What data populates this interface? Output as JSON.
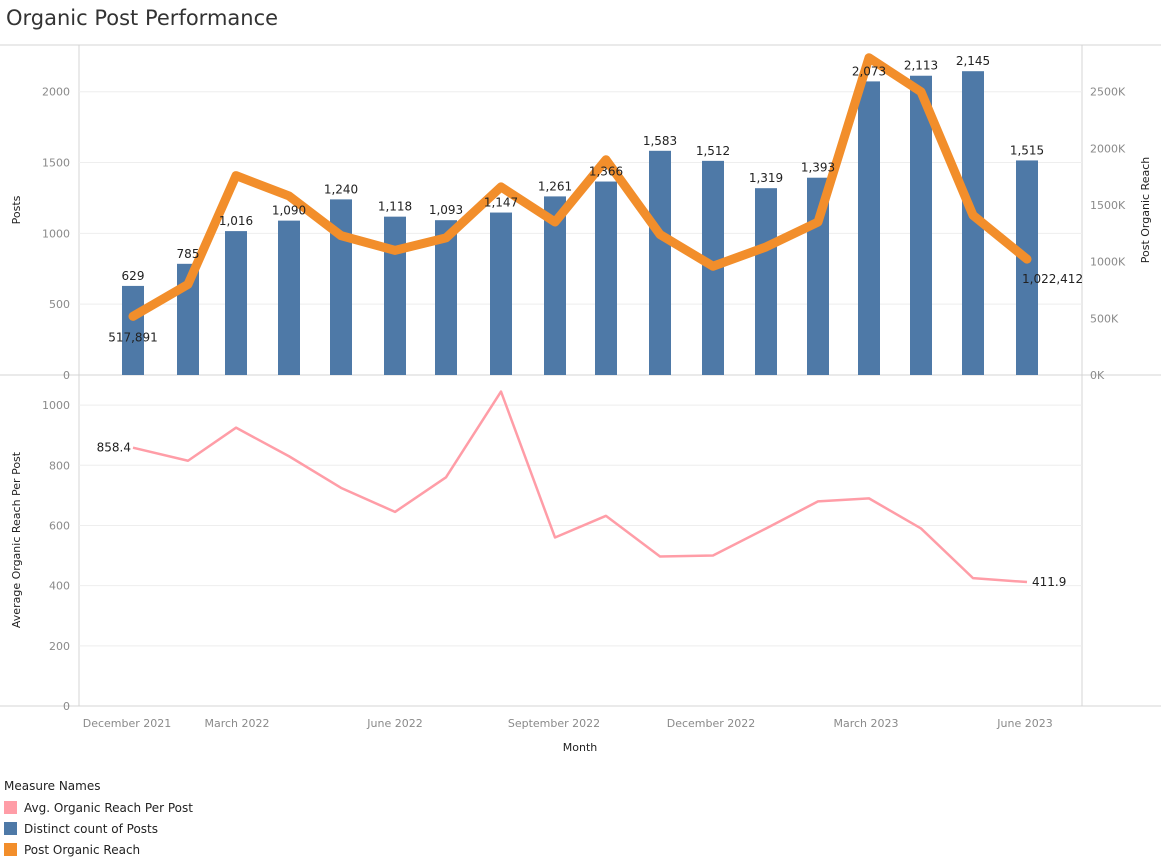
{
  "title": "Organic Post Performance",
  "colors": {
    "posts": "#4e79a7",
    "reach": "#f28e2b",
    "avg": "#ff9da7",
    "grid": "#eeeeee",
    "axis": "#d4d4d4"
  },
  "chart_data": {
    "type": "bar",
    "xlabel": "Month",
    "x_ticks": [
      "December 2021",
      "March 2022",
      "June 2022",
      "September 2022",
      "December 2022",
      "March 2023",
      "June 2023"
    ],
    "panels": [
      {
        "name": "top",
        "ylabel_left": "Posts",
        "ylabel_right": "Post Organic Reach",
        "yticks_left": [
          "0",
          "500",
          "1000",
          "1500",
          "2000"
        ],
        "yticks_right": [
          "0K",
          "500K",
          "1000K",
          "1500K",
          "2000K",
          "2500K"
        ],
        "ylim_left": [
          0,
          2330
        ],
        "ylim_right": [
          0,
          2912500
        ],
        "series": [
          {
            "name": "Distinct count of Posts",
            "type": "bar",
            "values": [
              629,
              785,
              1016,
              1090,
              1240,
              1118,
              1093,
              1147,
              1261,
              1366,
              1583,
              1512,
              1319,
              1393,
              2073,
              2113,
              2145,
              1515
            ],
            "labels": [
              "629",
              "785",
              "1,016",
              "1,090",
              "1,240",
              "1,118",
              "1,093",
              "1,147",
              "1,261",
              "1,366",
              "1,583",
              "1,512",
              "1,319",
              "1,393",
              "2,073",
              "2,113",
              "2,145",
              "1,515"
            ]
          },
          {
            "name": "Post Organic Reach",
            "type": "line",
            "values": [
              517891,
              800000,
              1760000,
              1580000,
              1230000,
              1100000,
              1210000,
              1660000,
              1350000,
              1900000,
              1240000,
              960000,
              1130000,
              1350000,
              2800000,
              2500000,
              1410000,
              1022412
            ],
            "point_labels": {
              "0": "517,891",
              "17": "1,022,412"
            }
          }
        ]
      },
      {
        "name": "bottom",
        "ylabel_left": "Average Organic Reach Per Post",
        "yticks_left": [
          "0",
          "200",
          "400",
          "600",
          "800",
          "1000"
        ],
        "ylim_left": [
          0,
          1100
        ],
        "series": [
          {
            "name": "Avg. Organic Reach Per Post",
            "type": "line",
            "values": [
              858.4,
              815,
              925,
              830,
              725,
              645,
              760,
              1045,
              560,
              632,
              497,
              500,
              590,
              680,
              690,
              590,
              425,
              411.9
            ],
            "point_labels": {
              "0": "858.4",
              "17": "411.9"
            }
          }
        ]
      }
    ]
  },
  "legend": {
    "title": "Measure Names",
    "items": [
      {
        "label": "Avg. Organic Reach Per Post",
        "color": "#ff9da7"
      },
      {
        "label": "Distinct count of Posts",
        "color": "#4e79a7"
      },
      {
        "label": "Post Organic Reach",
        "color": "#f28e2b"
      }
    ]
  }
}
